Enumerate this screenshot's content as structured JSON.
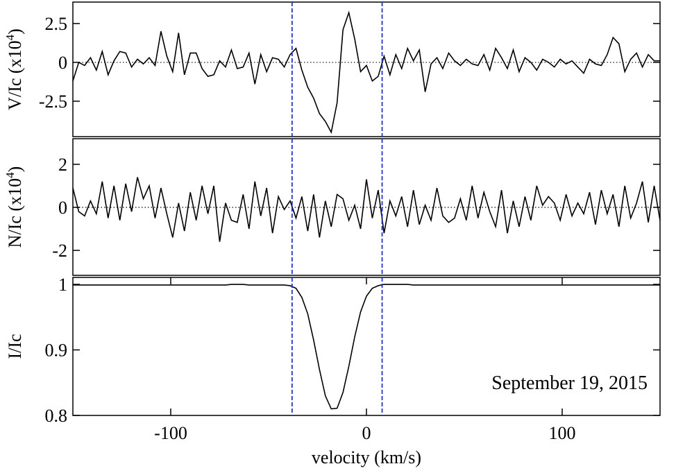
{
  "chart_data": [
    {
      "type": "line",
      "ylabel": "V/Ic (x10",
      "ylabel_sup": "4",
      "ylabel_end": ")",
      "xlim": [
        -150,
        150
      ],
      "ylim": [
        -4.78,
        3.88
      ],
      "yticks": [
        {
          "value": -2.5,
          "label": "-2.5"
        },
        0,
        {
          "value": 2.5,
          "label": "2.5"
        }
      ],
      "zero_line": true,
      "vlines": [
        -38,
        8
      ],
      "vline_color": "#2233dd",
      "x": [
        -150,
        -147,
        -144,
        -141,
        -138,
        -135,
        -132,
        -129,
        -126,
        -123,
        -120,
        -117,
        -114,
        -111,
        -108,
        -105,
        -102,
        -99,
        -96,
        -93,
        -90,
        -87,
        -84,
        -81,
        -78,
        -75,
        -72,
        -69,
        -66,
        -63,
        -60,
        -57,
        -54,
        -51,
        -48,
        -45,
        -42,
        -39,
        -36,
        -33,
        -30,
        -27,
        -24,
        -21,
        -18,
        -15,
        -12,
        -9,
        -6,
        -3,
        0,
        3,
        6,
        9,
        12,
        15,
        18,
        21,
        24,
        27,
        30,
        33,
        36,
        39,
        42,
        45,
        48,
        51,
        54,
        57,
        60,
        63,
        66,
        69,
        72,
        75,
        78,
        81,
        84,
        87,
        90,
        93,
        96,
        99,
        102,
        105,
        108,
        111,
        114,
        117,
        120,
        123,
        126,
        129,
        132,
        135,
        138,
        141,
        144,
        147,
        150
      ],
      "series": [
        {
          "color": "#000000",
          "values": [
            -1.2,
            0,
            -0.2,
            0.3,
            -0.5,
            0.7,
            -0.8,
            0.1,
            0.7,
            0.6,
            -0.3,
            0.2,
            -0.1,
            0.3,
            -0.2,
            2.0,
            0.4,
            -0.6,
            1.9,
            -0.8,
            0.6,
            0.6,
            -0.4,
            -0.9,
            -0.8,
            0.1,
            -0.3,
            0.8,
            -0.4,
            -0.3,
            0.6,
            -1.4,
            0.5,
            -0.6,
            0.3,
            0.2,
            -0.3,
            0.5,
            0.9,
            -0.5,
            -1.6,
            -2.3,
            -3.3,
            -3.8,
            -4.5,
            -2.6,
            2.1,
            3.2,
            1.5,
            -0.6,
            -0.2,
            -1.2,
            -0.9,
            0.4,
            -0.8,
            0.5,
            -0.4,
            0.9,
            0.1,
            0.8,
            -1.9,
            -0.1,
            0.3,
            -0.4,
            0.6,
            0.1,
            -0.2,
            0.2,
            -0.1,
            -0.2,
            0.5,
            -0.5,
            0.9,
            0.3,
            -0.4,
            0.8,
            -0.6,
            0.3,
            0,
            -0.5,
            0.2,
            0,
            -0.3,
            0.2,
            -0.1,
            0.1,
            -0.3,
            -0.7,
            0.2,
            -0.1,
            -0.2,
            0.5,
            1.6,
            1.2,
            -0.6,
            0.2,
            0.6,
            -0.3,
            0.5,
            0.1,
            0.1
          ]
        }
      ]
    },
    {
      "type": "line",
      "ylabel": "N/Ic (x10",
      "ylabel_sup": "4",
      "ylabel_end": ")",
      "xlim": [
        -150,
        150
      ],
      "ylim": [
        -3.16,
        3.19
      ],
      "yticks": [
        -2,
        0,
        2
      ],
      "zero_line": true,
      "vlines": [
        -38,
        8
      ],
      "vline_color": "#2233dd",
      "x": [
        -150,
        -147,
        -144,
        -141,
        -138,
        -135,
        -132,
        -129,
        -126,
        -123,
        -120,
        -117,
        -114,
        -111,
        -108,
        -105,
        -102,
        -99,
        -96,
        -93,
        -90,
        -87,
        -84,
        -81,
        -78,
        -75,
        -72,
        -69,
        -66,
        -63,
        -60,
        -57,
        -54,
        -51,
        -48,
        -45,
        -42,
        -39,
        -36,
        -33,
        -30,
        -27,
        -24,
        -21,
        -18,
        -15,
        -12,
        -9,
        -6,
        -3,
        0,
        3,
        6,
        9,
        12,
        15,
        18,
        21,
        24,
        27,
        30,
        33,
        36,
        39,
        42,
        45,
        48,
        51,
        54,
        57,
        60,
        63,
        66,
        69,
        72,
        75,
        78,
        81,
        84,
        87,
        90,
        93,
        96,
        99,
        102,
        105,
        108,
        111,
        114,
        117,
        120,
        123,
        126,
        129,
        132,
        135,
        138,
        141,
        144,
        147,
        150
      ],
      "series": [
        {
          "color": "#000000",
          "values": [
            0.9,
            -0.2,
            -0.4,
            0.3,
            -0.3,
            1.2,
            -0.5,
            1.0,
            -0.6,
            1.1,
            -0.2,
            1.4,
            0.4,
            1.0,
            -0.5,
            0.9,
            -0.3,
            -1.4,
            0.2,
            -1.1,
            0.7,
            -0.6,
            1.0,
            -0.3,
            1.0,
            -1.6,
            0.2,
            -0.6,
            -0.7,
            0.6,
            -1.0,
            1.2,
            -0.4,
            0.9,
            -1.2,
            0.5,
            -0.1,
            0.3,
            -0.5,
            0.5,
            -1.1,
            0.6,
            -1.4,
            0.3,
            -0.9,
            0.6,
            0.4,
            -0.6,
            0.1,
            -1.0,
            1.3,
            -0.5,
            0.8,
            -1.2,
            0.3,
            -0.4,
            0.5,
            -0.9,
            0.8,
            -0.8,
            0.1,
            -0.6,
            0.9,
            -0.4,
            -0.7,
            -0.5,
            0.4,
            -0.6,
            1.0,
            -0.5,
            0.7,
            -0.2,
            -0.9,
            0.8,
            -1.2,
            0.3,
            -0.9,
            0.5,
            -0.6,
            1.0,
            0.1,
            0.5,
            0.2,
            -0.6,
            0.6,
            -0.4,
            0.2,
            -0.3,
            0.7,
            -0.8,
            0.8,
            -0.3,
            0.6,
            -0.9,
            1.0,
            -0.5,
            0.2,
            1.2,
            -0.7,
            1.0,
            -0.6
          ]
        }
      ]
    },
    {
      "type": "line",
      "ylabel": "I/Ic",
      "xlim": [
        -150,
        150
      ],
      "ylim": [
        0.8,
        1.0106
      ],
      "yticks": [
        {
          "value": 0.8,
          "label": "0.8"
        },
        {
          "value": 0.9,
          "label": "0.9"
        },
        1
      ],
      "xticks": [
        -100,
        0,
        100
      ],
      "xlabel": "velocity (km/s)",
      "vlines": [
        -38,
        8
      ],
      "vline_color": "#2233dd",
      "annotation": "September 19, 2015",
      "x": [
        -150,
        -147,
        -144,
        -141,
        -138,
        -135,
        -132,
        -129,
        -126,
        -123,
        -120,
        -117,
        -114,
        -111,
        -108,
        -105,
        -102,
        -99,
        -96,
        -93,
        -90,
        -87,
        -84,
        -81,
        -78,
        -75,
        -72,
        -69,
        -66,
        -63,
        -60,
        -57,
        -54,
        -51,
        -48,
        -45,
        -42,
        -39,
        -36,
        -33,
        -30,
        -27,
        -24,
        -21,
        -18,
        -15,
        -12,
        -9,
        -6,
        -3,
        0,
        3,
        6,
        9,
        12,
        15,
        18,
        21,
        24,
        27,
        30,
        33,
        36,
        39,
        42,
        45,
        48,
        51,
        54,
        57,
        60,
        63,
        66,
        69,
        72,
        75,
        78,
        81,
        84,
        87,
        90,
        93,
        96,
        99,
        102,
        105,
        108,
        111,
        114,
        117,
        120,
        123,
        126,
        129,
        132,
        135,
        138,
        141,
        144,
        147,
        150
      ],
      "series": [
        {
          "color": "#000000",
          "values": [
            0.999,
            0.999,
            0.999,
            0.999,
            0.999,
            0.999,
            0.999,
            0.999,
            0.999,
            0.999,
            0.999,
            0.999,
            0.999,
            0.999,
            0.999,
            0.999,
            0.999,
            0.999,
            0.999,
            0.999,
            0.999,
            0.999,
            0.999,
            0.999,
            0.999,
            0.999,
            0.999,
            1.0,
            1.0,
            1.0,
            0.999,
            0.999,
            0.999,
            0.999,
            0.999,
            0.999,
            0.999,
            0.998,
            0.994,
            0.98,
            0.955,
            0.915,
            0.87,
            0.83,
            0.81,
            0.811,
            0.835,
            0.875,
            0.92,
            0.958,
            0.982,
            0.994,
            0.998,
            1.0,
            1.0,
            1.0,
            1.0,
            1.0,
            0.999,
            0.999,
            0.999,
            0.999,
            0.999,
            0.999,
            0.999,
            0.999,
            0.999,
            0.999,
            0.999,
            0.999,
            0.999,
            0.999,
            0.999,
            0.999,
            0.999,
            0.999,
            0.999,
            0.999,
            0.999,
            0.999,
            0.999,
            0.999,
            0.999,
            0.999,
            0.999,
            0.999,
            0.999,
            0.999,
            0.999,
            0.999,
            0.999,
            0.999,
            0.999,
            0.999,
            0.999,
            0.999,
            0.999,
            0.999,
            0.999,
            0.999,
            0.999
          ]
        }
      ]
    }
  ]
}
